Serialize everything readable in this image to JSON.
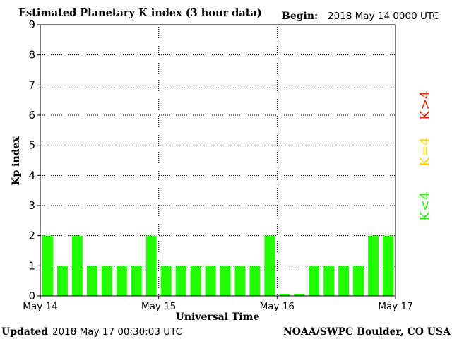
{
  "chart_data": {
    "type": "bar",
    "title": "Estimated Planetary K index (3 hour data)",
    "begin_label": "Begin:",
    "begin_value": "2018 May 14 0000 UTC",
    "ylabel": "Kp index",
    "xlabel": "Universal Time",
    "ylim": [
      0,
      9
    ],
    "yticks": [
      "0",
      "1",
      "2",
      "3",
      "4",
      "5",
      "6",
      "7",
      "8",
      "9"
    ],
    "xticks": [
      "May 14",
      "May 15",
      "May 16",
      "May 17"
    ],
    "grid": true,
    "values": [
      2,
      1,
      2,
      1,
      1,
      1,
      1,
      2,
      1,
      1,
      1,
      1,
      1,
      1,
      1,
      2,
      0.07,
      0.07,
      1,
      1,
      1,
      1,
      2,
      2
    ],
    "bar_color": "#22ff00",
    "legend": [
      {
        "label": "K<4",
        "color": "#22ee00"
      },
      {
        "label": "K=4",
        "color": "#ffcc00"
      },
      {
        "label": "K>4",
        "color": "#ee2200"
      }
    ]
  },
  "footer": {
    "updated_label": "Updated",
    "updated_value": "2018 May 17 00:30:03 UTC",
    "source": "NOAA/SWPC Boulder, CO USA"
  }
}
